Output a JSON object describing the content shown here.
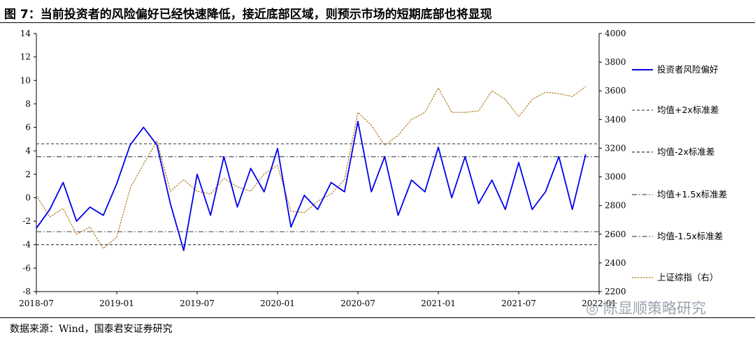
{
  "title": "图 7：当前投资者的风险偏好已经快速降低，接近底部区域，则预示市场的短期底部也将显现",
  "source": "数据来源：Wind，国泰君安证券研究",
  "watermark": "陈显顺策略研究",
  "chart_data": {
    "type": "line",
    "x_ticks": [
      "2018-07",
      "2019-01",
      "2019-07",
      "2020-01",
      "2020-07",
      "2021-01",
      "2021-07",
      "2022-01"
    ],
    "x_range": [
      "2018-07",
      "2022-01"
    ],
    "ylim_left": [
      -8,
      14
    ],
    "yticks_left": [
      -8,
      -6,
      -4,
      -2,
      0,
      2,
      4,
      6,
      8,
      10,
      12,
      14
    ],
    "ylim_right": [
      2200,
      4000
    ],
    "yticks_right": [
      2200,
      2400,
      2600,
      2800,
      3000,
      3200,
      3400,
      3600,
      3800,
      4000
    ],
    "grid": false,
    "legend_position": "right",
    "series": [
      {
        "name": "投资者风险偏好",
        "axis": "left",
        "style": "solid",
        "color": "#0000ee",
        "x": [
          "2018-07",
          "2018-08",
          "2018-09",
          "2018-10",
          "2018-11",
          "2018-12",
          "2019-01",
          "2019-02",
          "2019-03",
          "2019-04",
          "2019-05",
          "2019-06",
          "2019-07",
          "2019-08",
          "2019-09",
          "2019-10",
          "2019-11",
          "2019-12",
          "2020-01",
          "2020-02",
          "2020-03",
          "2020-04",
          "2020-05",
          "2020-06",
          "2020-07",
          "2020-08",
          "2020-09",
          "2020-10",
          "2020-11",
          "2020-12",
          "2021-01",
          "2021-02",
          "2021-03",
          "2021-04",
          "2021-05",
          "2021-06",
          "2021-07",
          "2021-08",
          "2021-09",
          "2021-10",
          "2021-11",
          "2021-12"
        ],
        "values": [
          -2.6,
          -1.0,
          1.3,
          -2.0,
          -0.8,
          -1.5,
          1.2,
          4.5,
          6.0,
          4.5,
          -0.5,
          -4.5,
          2.0,
          -1.5,
          3.5,
          -0.8,
          2.5,
          0.5,
          4.2,
          -2.5,
          0.2,
          -1.0,
          1.3,
          0.5,
          6.5,
          0.5,
          3.5,
          -1.5,
          1.5,
          0.5,
          4.3,
          0.0,
          3.5,
          -0.5,
          1.5,
          -1.0,
          3.0,
          -1.0,
          0.5,
          3.5,
          -1.0,
          3.7
        ]
      },
      {
        "name": "均值+2x标准差",
        "axis": "left",
        "style": "dashed",
        "color": "#555555",
        "x": [
          "2018-07",
          "2022-01"
        ],
        "values": [
          4.6,
          4.6
        ]
      },
      {
        "name": "均值-2x标准差",
        "axis": "left",
        "style": "dashed",
        "color": "#333333",
        "x": [
          "2018-07",
          "2022-01"
        ],
        "values": [
          -4.0,
          -4.0
        ]
      },
      {
        "name": "均值+1.5x标准差",
        "axis": "left",
        "style": "dashdot",
        "color": "#555555",
        "x": [
          "2018-07",
          "2022-01"
        ],
        "values": [
          3.5,
          3.5
        ]
      },
      {
        "name": "均值-1.5x标准差",
        "axis": "left",
        "style": "dashdot",
        "color": "#555555",
        "x": [
          "2018-07",
          "2022-01"
        ],
        "values": [
          -2.9,
          -2.9
        ]
      },
      {
        "name": "上证综指（右）",
        "axis": "right",
        "style": "dotted",
        "color": "#b07a1e",
        "x": [
          "2018-07",
          "2018-08",
          "2018-09",
          "2018-10",
          "2018-11",
          "2018-12",
          "2019-01",
          "2019-02",
          "2019-03",
          "2019-04",
          "2019-05",
          "2019-06",
          "2019-07",
          "2019-08",
          "2019-09",
          "2019-10",
          "2019-11",
          "2019-12",
          "2020-01",
          "2020-02",
          "2020-03",
          "2020-04",
          "2020-05",
          "2020-06",
          "2020-07",
          "2020-08",
          "2020-09",
          "2020-10",
          "2020-11",
          "2020-12",
          "2021-01",
          "2021-02",
          "2021-03",
          "2021-04",
          "2021-05",
          "2021-06",
          "2021-07",
          "2021-08",
          "2021-09",
          "2021-10",
          "2021-11",
          "2021-12"
        ],
        "values": [
          2870,
          2720,
          2780,
          2600,
          2650,
          2500,
          2580,
          2920,
          3090,
          3250,
          2900,
          2980,
          2900,
          2880,
          2990,
          2930,
          2900,
          3020,
          3080,
          2760,
          2750,
          2830,
          2880,
          2980,
          3450,
          3360,
          3220,
          3290,
          3400,
          3450,
          3620,
          3450,
          3450,
          3460,
          3600,
          3540,
          3420,
          3540,
          3590,
          3580,
          3560,
          3630
        ]
      }
    ]
  }
}
